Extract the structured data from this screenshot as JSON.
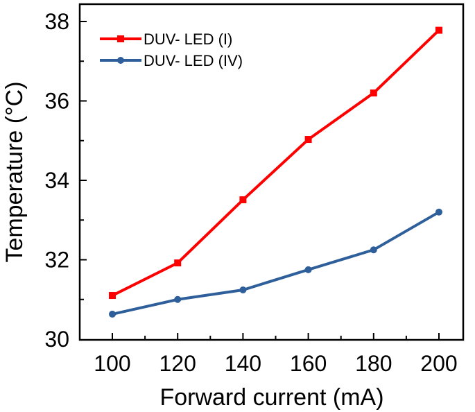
{
  "chart_data": {
    "type": "line",
    "title": "",
    "xlabel": "Forward current (mA)",
    "ylabel": "Temperature (°C)",
    "xlim": [
      90,
      210
    ],
    "ylim": [
      30,
      38
    ],
    "xticks": [
      100,
      120,
      140,
      160,
      180,
      200
    ],
    "yticks": [
      30,
      32,
      34,
      36,
      38
    ],
    "grid": false,
    "legend_position": "top-left",
    "x": [
      100,
      120,
      140,
      160,
      180,
      200
    ],
    "series": [
      {
        "name": "DUV- LED (I)",
        "color": "#ff0000",
        "marker": "square",
        "values": [
          31.1,
          31.92,
          33.51,
          35.03,
          36.2,
          37.78
        ]
      },
      {
        "name": "DUV- LED (IV)",
        "color": "#2e5f9a",
        "marker": "circle",
        "values": [
          30.63,
          31.0,
          31.24,
          31.75,
          32.25,
          33.2
        ]
      }
    ]
  }
}
